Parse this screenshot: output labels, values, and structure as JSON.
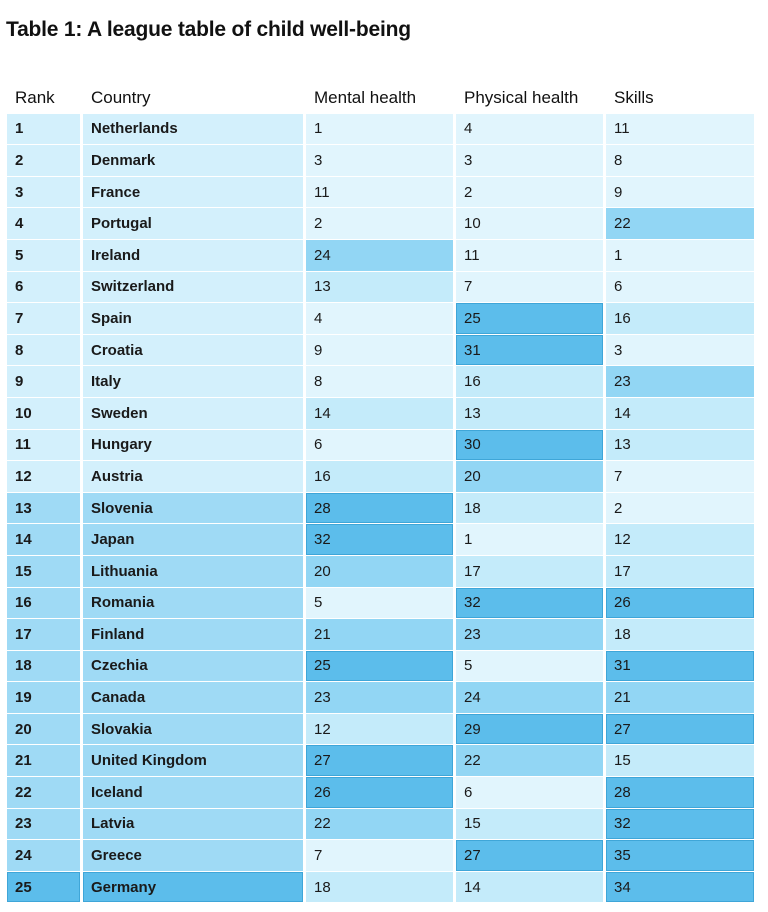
{
  "title": "Table 1: A league table of child well-being",
  "columns": {
    "rank": "Rank",
    "country": "Country",
    "mental": "Mental health",
    "physical": "Physical health",
    "skills": "Skills"
  },
  "rows": [
    {
      "rank": "1",
      "country": "Netherlands",
      "mental": "1",
      "physical": "4",
      "skills": "11"
    },
    {
      "rank": "2",
      "country": "Denmark",
      "mental": "3",
      "physical": "3",
      "skills": "8"
    },
    {
      "rank": "3",
      "country": "France",
      "mental": "11",
      "physical": "2",
      "skills": "9"
    },
    {
      "rank": "4",
      "country": "Portugal",
      "mental": "2",
      "physical": "10",
      "skills": "22"
    },
    {
      "rank": "5",
      "country": "Ireland",
      "mental": "24",
      "physical": "11",
      "skills": "1"
    },
    {
      "rank": "6",
      "country": "Switzerland",
      "mental": "13",
      "physical": "7",
      "skills": "6"
    },
    {
      "rank": "7",
      "country": "Spain",
      "mental": "4",
      "physical": "25",
      "skills": "16"
    },
    {
      "rank": "8",
      "country": "Croatia",
      "mental": "9",
      "physical": "31",
      "skills": "3"
    },
    {
      "rank": "9",
      "country": "Italy",
      "mental": "8",
      "physical": "16",
      "skills": "23"
    },
    {
      "rank": "10",
      "country": "Sweden",
      "mental": "14",
      "physical": "13",
      "skills": "14"
    },
    {
      "rank": "11",
      "country": "Hungary",
      "mental": "6",
      "physical": "30",
      "skills": "13"
    },
    {
      "rank": "12",
      "country": "Austria",
      "mental": "16",
      "physical": "20",
      "skills": "7"
    },
    {
      "rank": "13",
      "country": "Slovenia",
      "mental": "28",
      "physical": "18",
      "skills": "2"
    },
    {
      "rank": "14",
      "country": "Japan",
      "mental": "32",
      "physical": "1",
      "skills": "12"
    },
    {
      "rank": "15",
      "country": "Lithuania",
      "mental": "20",
      "physical": "17",
      "skills": "17"
    },
    {
      "rank": "16",
      "country": "Romania",
      "mental": "5",
      "physical": "32",
      "skills": "26"
    },
    {
      "rank": "17",
      "country": "Finland",
      "mental": "21",
      "physical": "23",
      "skills": "18"
    },
    {
      "rank": "18",
      "country": "Czechia",
      "mental": "25",
      "physical": "5",
      "skills": "31"
    },
    {
      "rank": "19",
      "country": "Canada",
      "mental": "23",
      "physical": "24",
      "skills": "21"
    },
    {
      "rank": "20",
      "country": "Slovakia",
      "mental": "12",
      "physical": "29",
      "skills": "27"
    },
    {
      "rank": "21",
      "country": "United Kingdom",
      "mental": "27",
      "physical": "22",
      "skills": "15"
    },
    {
      "rank": "22",
      "country": "Iceland",
      "mental": "26",
      "physical": "6",
      "skills": "28"
    },
    {
      "rank": "23",
      "country": "Latvia",
      "mental": "22",
      "physical": "15",
      "skills": "32"
    },
    {
      "rank": "24",
      "country": "Greece",
      "mental": "7",
      "physical": "27",
      "skills": "35"
    },
    {
      "rank": "25",
      "country": "Germany",
      "mental": "18",
      "physical": "14",
      "skills": "34"
    }
  ],
  "colors": {
    "shade_light": "#e1f5fd",
    "shade_mid": "#c4ebfa",
    "shade_strong": "#92d6f4",
    "shade_max": "#5cbdeb"
  }
}
